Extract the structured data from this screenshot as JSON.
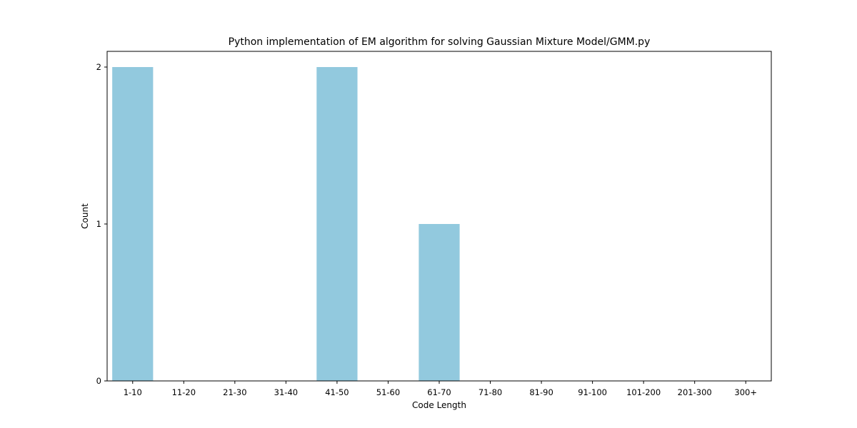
{
  "chart_data": {
    "type": "bar",
    "title": "Python implementation of EM algorithm for solving Gaussian Mixture Model/GMM.py",
    "xlabel": "Code Length",
    "ylabel": "Count",
    "categories": [
      "1-10",
      "11-20",
      "21-30",
      "31-40",
      "41-50",
      "51-60",
      "61-70",
      "71-80",
      "81-90",
      "91-100",
      "101-200",
      "201-300",
      "300+"
    ],
    "values": [
      2,
      0,
      0,
      0,
      2,
      0,
      1,
      0,
      0,
      0,
      0,
      0,
      0
    ],
    "yticks": [
      0,
      1,
      2
    ],
    "ylim": [
      0,
      2.1
    ],
    "grid": false,
    "legend": "none",
    "bar_color": "#92c9de"
  }
}
